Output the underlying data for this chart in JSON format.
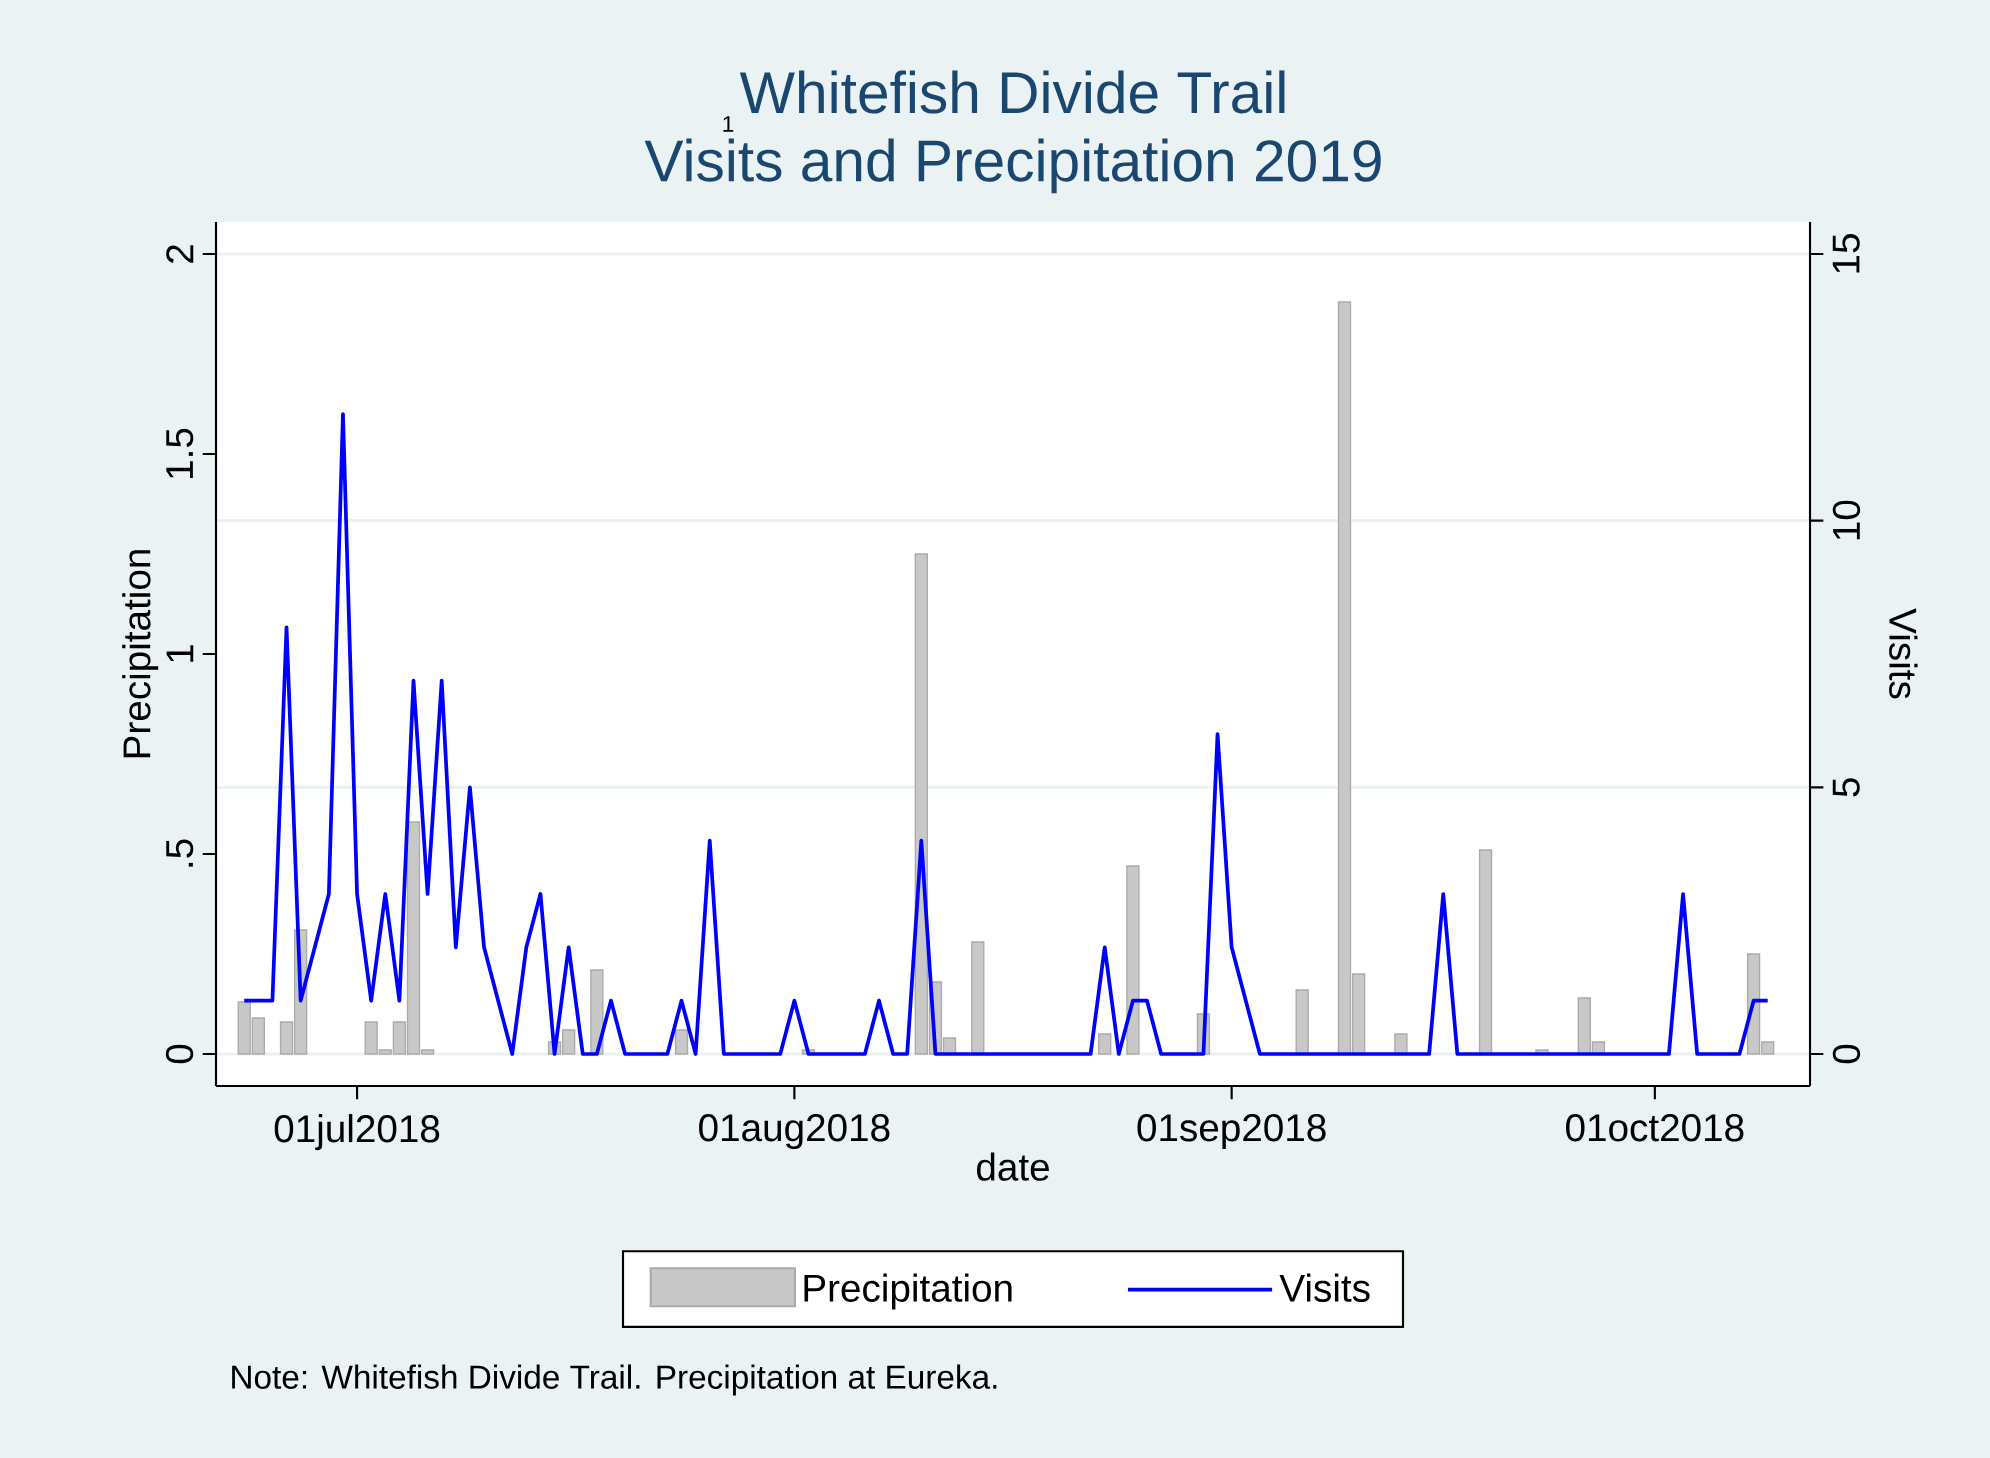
{
  "chart_data": {
    "type": "bar",
    "title": "Whitefish Divide Trail",
    "subtitle": "Visits and Precipitation 2019",
    "xlabel": "date",
    "ylabel": "Precipitation",
    "y2label": "Visits",
    "annotations": [
      "1",
      "Note: Whitefish Divide Trail. Precipitation at Eureka."
    ],
    "xlim": [
      "2018-06-21",
      "2018-10-12"
    ],
    "xticks": [
      {
        "value": "2018-07-01",
        "label": "01jul2018"
      },
      {
        "value": "2018-08-01",
        "label": "01aug2018"
      },
      {
        "value": "2018-09-01",
        "label": "01sep2018"
      },
      {
        "value": "2018-10-01",
        "label": "01oct2018"
      }
    ],
    "ylim": [
      -0.08,
      2.08
    ],
    "yticks": [
      0,
      {
        "value": 0.5,
        "label": ".5"
      },
      1,
      {
        "value": 1.5,
        "label": "1.5"
      },
      2
    ],
    "y2lim": [
      -0.6,
      15.6
    ],
    "y2ticks": [
      0,
      5,
      10,
      15
    ],
    "grid": "y",
    "legend": "bottom",
    "series": [
      {
        "name": "Precipitation",
        "color": "#c8c8c8",
        "x": [
          "2018-06-23",
          "2018-06-24",
          "2018-06-26",
          "2018-06-27",
          "2018-07-02",
          "2018-07-03",
          "2018-07-04",
          "2018-07-05",
          "2018-07-06",
          "2018-07-15",
          "2018-07-16",
          "2018-07-18",
          "2018-07-24",
          "2018-08-02",
          "2018-08-10",
          "2018-08-11",
          "2018-08-12",
          "2018-08-14",
          "2018-08-23",
          "2018-08-25",
          "2018-08-30",
          "2018-09-06",
          "2018-09-09",
          "2018-09-10",
          "2018-09-13",
          "2018-09-19",
          "2018-09-23",
          "2018-09-26",
          "2018-09-27",
          "2018-10-08",
          "2018-10-09"
        ],
        "values": [
          0.13,
          0.09,
          0.08,
          0.31,
          0.08,
          0.01,
          0.08,
          0.58,
          0.01,
          0.03,
          0.06,
          0.21,
          0.06,
          0.01,
          1.25,
          0.18,
          0.04,
          0.28,
          0.05,
          0.47,
          0.1,
          0.16,
          1.88,
          0.2,
          0.05,
          0.51,
          0.01,
          0.14,
          0.03,
          0.25,
          0.03
        ]
      },
      {
        "type": "line",
        "name": "Visits",
        "color": "#0000ff",
        "axis": "y2",
        "x": [
          "2018-06-23",
          "2018-06-25",
          "2018-06-26",
          "2018-06-27",
          "2018-06-29",
          "2018-06-30",
          "2018-07-01",
          "2018-07-02",
          "2018-07-03",
          "2018-07-04",
          "2018-07-05",
          "2018-07-06",
          "2018-07-07",
          "2018-07-08",
          "2018-07-09",
          "2018-07-10",
          "2018-07-12",
          "2018-07-13",
          "2018-07-14",
          "2018-07-15",
          "2018-07-16",
          "2018-07-17",
          "2018-07-18",
          "2018-07-19",
          "2018-07-20",
          "2018-07-23",
          "2018-07-24",
          "2018-07-25",
          "2018-07-26",
          "2018-07-27",
          "2018-07-31",
          "2018-08-01",
          "2018-08-02",
          "2018-08-06",
          "2018-08-07",
          "2018-08-08",
          "2018-08-09",
          "2018-08-10",
          "2018-08-11",
          "2018-08-22",
          "2018-08-23",
          "2018-08-24",
          "2018-08-25",
          "2018-08-26",
          "2018-08-27",
          "2018-08-30",
          "2018-08-31",
          "2018-09-01",
          "2018-09-03",
          "2018-09-15",
          "2018-09-16",
          "2018-09-17",
          "2018-10-02",
          "2018-10-03",
          "2018-10-04",
          "2018-10-07",
          "2018-10-08",
          "2018-10-09"
        ],
        "values": [
          1,
          1,
          8,
          1,
          3,
          12,
          3,
          1,
          3,
          1,
          7,
          3,
          7,
          2,
          5,
          2,
          0,
          2,
          3,
          0,
          2,
          0,
          0,
          1,
          0,
          0,
          1,
          0,
          4,
          0,
          0,
          1,
          0,
          0,
          1,
          0,
          0,
          4,
          0,
          0,
          2,
          0,
          1,
          1,
          0,
          0,
          6,
          2,
          0,
          0,
          3,
          0,
          0,
          3,
          0,
          0,
          1,
          1
        ]
      }
    ]
  }
}
